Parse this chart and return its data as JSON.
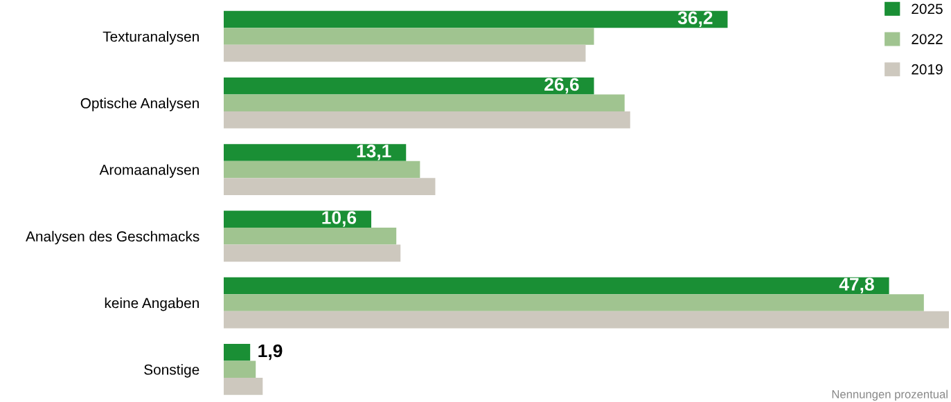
{
  "chart_data": {
    "type": "bar",
    "orientation": "horizontal",
    "categories": [
      "Texturanalysen",
      "Optische Analysen",
      "Aromaanalysen",
      "Analysen des Geschmacks",
      "keine Angaben",
      "Sonstige"
    ],
    "series": [
      {
        "name": "2025",
        "color": "#1a8f35",
        "values": [
          36.2,
          26.6,
          13.1,
          10.6,
          47.8,
          1.9
        ],
        "value_labels": [
          "36,2",
          "26,6",
          "13,1",
          "10,6",
          "47,8",
          "1,9"
        ]
      },
      {
        "name": "2022",
        "color": "#a0c490",
        "values": [
          26.6,
          28.8,
          14.1,
          12.4,
          50.3,
          2.3
        ]
      },
      {
        "name": "2019",
        "color": "#cdc8be",
        "values": [
          26.0,
          29.2,
          15.2,
          12.7,
          52.1,
          2.8
        ]
      }
    ],
    "legend": "top right",
    "grid": false,
    "tick_labels": "y",
    "annotations": [
      "Nennungen prozentual"
    ]
  }
}
